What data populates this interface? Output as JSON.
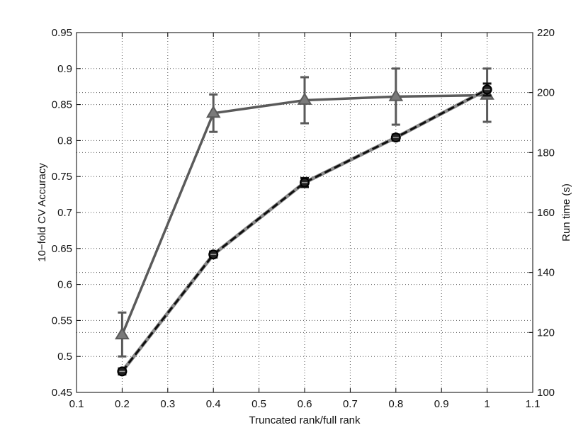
{
  "chart_data": {
    "type": "line",
    "title": "",
    "xlabel": "Truncated rank/full rank",
    "ylabel_left": "10−fold CV Accuracy",
    "ylabel_right": "Run time (s)",
    "xlim": [
      0.1,
      1.1
    ],
    "ylim_left": [
      0.45,
      0.95
    ],
    "ylim_right": [
      100,
      220
    ],
    "x_ticks": [
      "0.1",
      "0.2",
      "0.3",
      "0.4",
      "0.5",
      "0.6",
      "0.7",
      "0.8",
      "0.9",
      "1",
      "1.1"
    ],
    "y_left_ticks": [
      "0.45",
      "0.5",
      "0.55",
      "0.6",
      "0.65",
      "0.7",
      "0.75",
      "0.8",
      "0.85",
      "0.9",
      "0.95"
    ],
    "y_right_ticks": [
      "100",
      "120",
      "140",
      "160",
      "180",
      "200",
      "220"
    ],
    "grid": true,
    "series": [
      {
        "axis": "left",
        "marker": "triangle",
        "line_style": "solid",
        "color": "#5a5a5a",
        "x": [
          0.2,
          0.4,
          0.6,
          0.8,
          1.0
        ],
        "y": [
          0.53,
          0.838,
          0.856,
          0.861,
          0.863
        ],
        "err_low": [
          0.5,
          0.812,
          0.824,
          0.822,
          0.826
        ],
        "err_high": [
          0.561,
          0.864,
          0.888,
          0.9,
          0.9
        ]
      },
      {
        "axis": "right",
        "marker": "circle",
        "line_style": "dashed",
        "color": "#111111",
        "x": [
          0.2,
          0.4,
          0.6,
          0.8,
          1.0
        ],
        "y": [
          107,
          146,
          170,
          185,
          201
        ],
        "err_low": [
          106,
          145,
          168.5,
          184,
          199
        ],
        "err_high": [
          108,
          147,
          171.5,
          186,
          203
        ]
      }
    ]
  }
}
